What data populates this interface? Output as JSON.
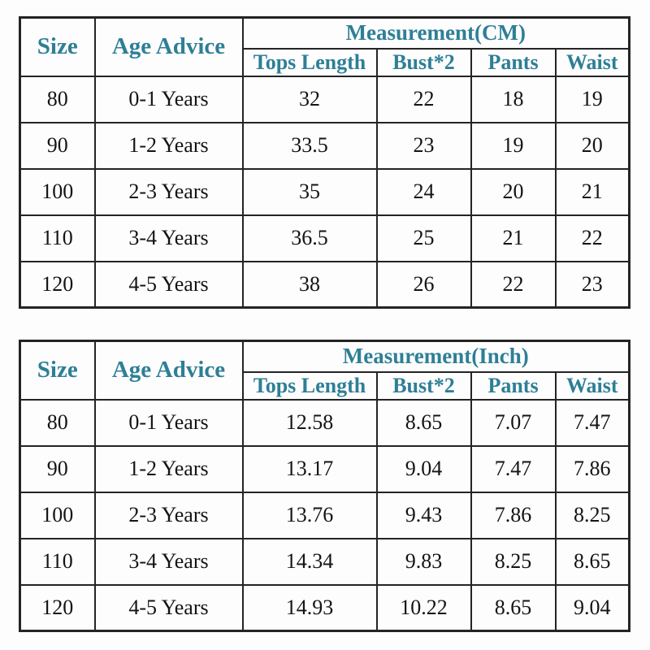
{
  "colors": {
    "header_text": "#2E7F96",
    "body_text": "#141414",
    "border": "#242424",
    "background": "#FDFDFD"
  },
  "chart_data": [
    {
      "type": "table",
      "title": "Measurement(CM)",
      "corner_headers": {
        "size": "Size",
        "age": "Age Advice"
      },
      "sub_columns": [
        "Tops Length",
        "Bust*2",
        "Pants",
        "Waist"
      ],
      "rows": [
        {
          "size": "80",
          "age": "0-1 Years",
          "tops": "32",
          "bust": "22",
          "pants": "18",
          "waist": "19"
        },
        {
          "size": "90",
          "age": "1-2 Years",
          "tops": "33.5",
          "bust": "23",
          "pants": "19",
          "waist": "20"
        },
        {
          "size": "100",
          "age": "2-3 Years",
          "tops": "35",
          "bust": "24",
          "pants": "20",
          "waist": "21"
        },
        {
          "size": "110",
          "age": "3-4 Years",
          "tops": "36.5",
          "bust": "25",
          "pants": "21",
          "waist": "22"
        },
        {
          "size": "120",
          "age": "4-5 Years",
          "tops": "38",
          "bust": "26",
          "pants": "22",
          "waist": "23"
        }
      ]
    },
    {
      "type": "table",
      "title": "Measurement(Inch)",
      "corner_headers": {
        "size": "Size",
        "age": "Age Advice"
      },
      "sub_columns": [
        "Tops Length",
        "Bust*2",
        "Pants",
        "Waist"
      ],
      "rows": [
        {
          "size": "80",
          "age": "0-1 Years",
          "tops": "12.58",
          "bust": "8.65",
          "pants": "7.07",
          "waist": "7.47"
        },
        {
          "size": "90",
          "age": "1-2 Years",
          "tops": "13.17",
          "bust": "9.04",
          "pants": "7.47",
          "waist": "7.86"
        },
        {
          "size": "100",
          "age": "2-3 Years",
          "tops": "13.76",
          "bust": "9.43",
          "pants": "7.86",
          "waist": "8.25"
        },
        {
          "size": "110",
          "age": "3-4 Years",
          "tops": "14.34",
          "bust": "9.83",
          "pants": "8.25",
          "waist": "8.65"
        },
        {
          "size": "120",
          "age": "4-5 Years",
          "tops": "14.93",
          "bust": "10.22",
          "pants": "8.65",
          "waist": "9.04"
        }
      ]
    }
  ]
}
